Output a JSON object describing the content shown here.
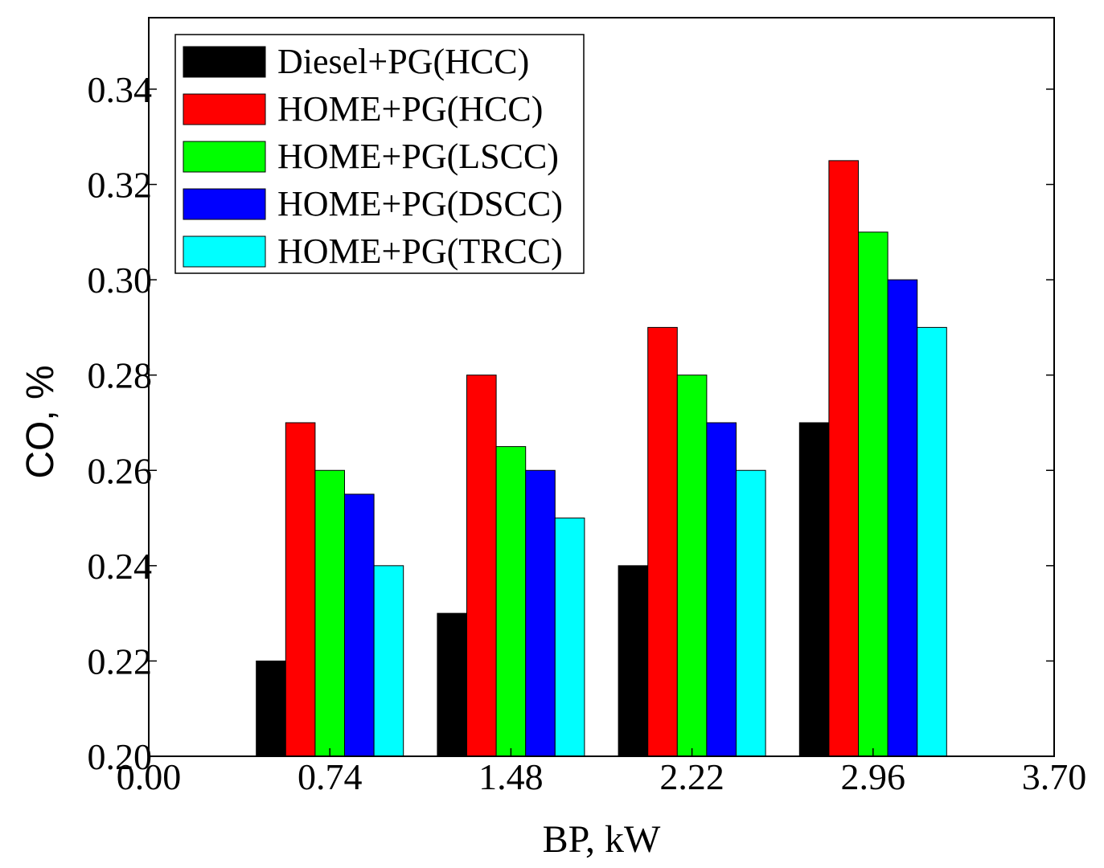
{
  "chart_data": {
    "type": "bar",
    "title": "",
    "xlabel": "BP, kW",
    "ylabel": "CO, %",
    "x_ticks": [
      "0.00",
      "0.74",
      "1.48",
      "2.22",
      "2.96",
      "3.70"
    ],
    "y_ticks": [
      "0.20",
      "0.22",
      "0.24",
      "0.26",
      "0.28",
      "0.30",
      "0.32",
      "0.34"
    ],
    "categories": [
      "0.74",
      "1.48",
      "2.22",
      "2.96"
    ],
    "xlim": [
      0,
      3.7
    ],
    "ylim": [
      0.2,
      0.355
    ],
    "grid": false,
    "legend_position": "top-left",
    "series": [
      {
        "name": "Diesel+PG(HCC)",
        "color": "#000000",
        "values": [
          0.22,
          0.23,
          0.24,
          0.27
        ]
      },
      {
        "name": "HOME+PG(HCC)",
        "color": "#ff0000",
        "values": [
          0.27,
          0.28,
          0.29,
          0.325
        ]
      },
      {
        "name": "HOME+PG(LSCC)",
        "color": "#00ff00",
        "values": [
          0.26,
          0.265,
          0.28,
          0.31
        ]
      },
      {
        "name": "HOME+PG(DSCC)",
        "color": "#0000ff",
        "values": [
          0.255,
          0.26,
          0.27,
          0.3
        ]
      },
      {
        "name": "HOME+PG(TRCC)",
        "color": "#00ffff",
        "values": [
          0.24,
          0.25,
          0.26,
          0.29
        ]
      }
    ]
  }
}
